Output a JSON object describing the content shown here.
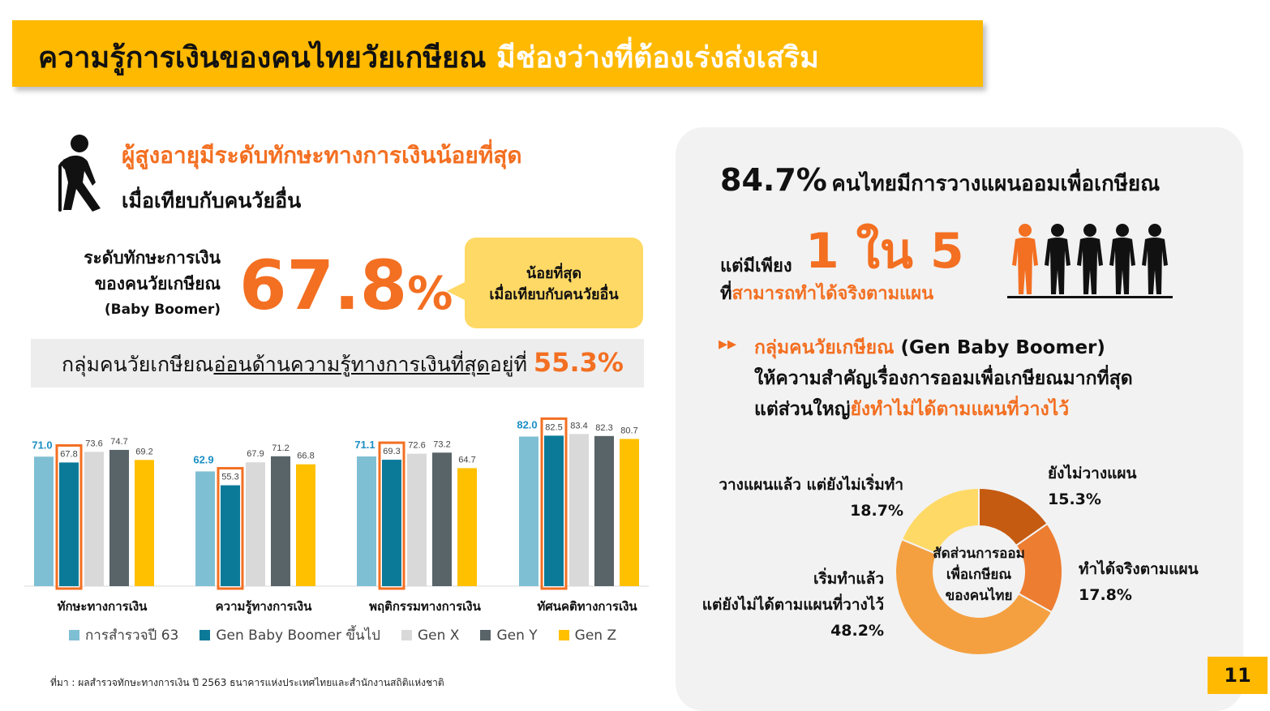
{
  "title": {
    "part1": "ความรู้การเงินของคนไทยวัยเกษียณ",
    "part2": "มีช่องว่างที่ต้องเร่งส่งเสริม"
  },
  "left": {
    "headline": "ผู้สูงอายุมีระดับทักษะทางการเงินน้อยที่สุด",
    "subheadline": "เมื่อเทียบกับคนวัยอื่น",
    "skill_label_1": "ระดับทักษะการเงิน",
    "skill_label_2": "ของคนวัยเกษียณ",
    "skill_label_3": "(Baby Boomer)",
    "skill_value": "67.8",
    "skill_pct_sign": "%",
    "callout_1": "น้อยที่สุด",
    "callout_2": "เมื่อเทียบกับคนวัยอื่น",
    "weak_prefix": "กลุ่มคนวัยเกษียณ",
    "weak_underlined": "อ่อนด้านความรู้ทางการเงินที่สุด",
    "weak_suffix": "อยู่ที่",
    "weak_value": "55.3%"
  },
  "chart_data": {
    "type": "bar",
    "categories": [
      "ทักษะทางการเงิน",
      "ความรู้ทางการเงิน",
      "พฤติกรรมทางการเงิน",
      "ทัศนคติทางการเงิน"
    ],
    "series": [
      {
        "name": "การสำรวจปี 63",
        "color": "#7FBFD4",
        "values": [
          71.0,
          62.9,
          71.1,
          82.0
        ],
        "labels": [
          "71.0",
          "62.9",
          "71.1",
          "82.0"
        ]
      },
      {
        "name": "Gen Baby Boomer ขึ้นไป",
        "color": "#0B7A99",
        "values": [
          67.8,
          55.3,
          69.3,
          82.5
        ],
        "labels": [
          "67.8",
          "55.3",
          "69.3",
          "82.5"
        ]
      },
      {
        "name": "Gen X",
        "color": "#D9D9D9",
        "values": [
          73.6,
          67.9,
          72.6,
          83.4
        ],
        "labels": [
          "73.6",
          "67.9",
          "72.6",
          "83.4"
        ]
      },
      {
        "name": "Gen Y",
        "color": "#596468",
        "values": [
          74.7,
          71.2,
          73.2,
          82.3
        ],
        "labels": [
          "74.7",
          "71.2",
          "73.2",
          "82.3"
        ]
      },
      {
        "name": "Gen Z",
        "color": "#FFC000",
        "values": [
          69.2,
          66.8,
          64.7,
          80.7
        ],
        "labels": [
          "69.2",
          "66.8",
          "64.7",
          "80.7"
        ]
      }
    ],
    "highlight_series": "Gen Baby Boomer ขึ้นไป",
    "highlight_color": "#F36F21"
  },
  "source": "ที่มา : ผลสำรวจทักษะทางการเงิน ปี 2563 ธนาคารแห่งประเทศไทยและสำนักงานสถิติแห่งชาติ",
  "right": {
    "stat_value": "84.7%",
    "stat_text": "คนไทยมีการวางแผนออมเพื่อเกษียณ",
    "only_prefix": "แต่มีเพียง",
    "only_big": "1 ใน 5",
    "only_line2_pre": "ที่",
    "only_line2_orange": "สามารถทำได้จริงตามแผน",
    "bullet_orange": "กลุ่มคนวัยเกษียณ",
    "bullet_black": "(Gen Baby Boomer)",
    "bullet_line2": "ให้ความสำคัญเรื่องการออมเพื่อเกษียณมากที่สุด",
    "bullet_line3_pre": "แต่ส่วนใหญ่",
    "bullet_line3_orange": "ยังทำไม่ได้ตามแผนที่วางไว้",
    "donut_center_1": "สัดส่วนการออม",
    "donut_center_2": "เพื่อเกษียณ",
    "donut_center_3": "ของคนไทย",
    "donut": [
      {
        "label": "ยังไม่วางแผน",
        "value": 15.3,
        "text": "15.3%",
        "color": "#C55A11"
      },
      {
        "label": "ทำได้จริงตามแผน",
        "value": 17.8,
        "text": "17.8%",
        "color": "#ED7D31"
      },
      {
        "label_1": "เริ่มทำแล้ว",
        "label_2": "แต่ยังไม่ได้ตามแผนที่วางไว้",
        "value": 48.2,
        "text": "48.2%",
        "color": "#F4A040"
      },
      {
        "label": "วางแผนแล้ว แต่ยังไม่เริ่มทำ",
        "value": 18.7,
        "text": "18.7%",
        "color": "#FFD966"
      }
    ]
  },
  "page_number": "11",
  "colors": {
    "accent": "#FFB900",
    "orange": "#F36F21"
  }
}
